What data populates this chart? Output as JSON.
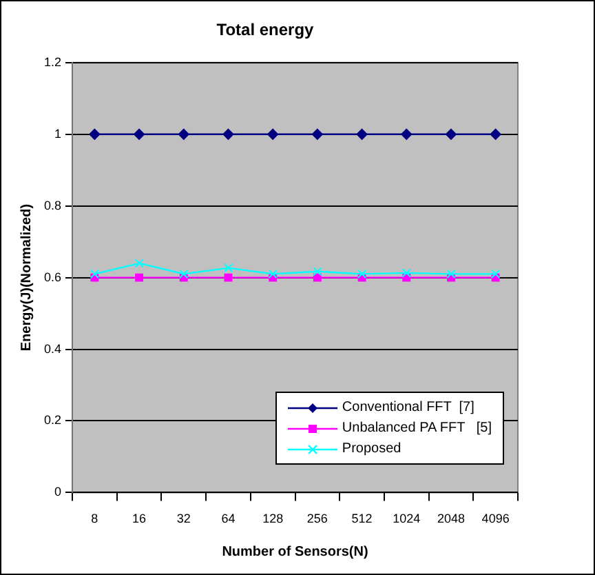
{
  "chart_data": {
    "type": "line",
    "title": "Total energy",
    "xlabel": "Number of Sensors(N)",
    "ylabel": "Energy(J)(Normalized)",
    "categories": [
      "8",
      "16",
      "32",
      "64",
      "128",
      "256",
      "512",
      "1024",
      "2048",
      "4096"
    ],
    "series": [
      {
        "name": "Conventional FFT  [7]",
        "color": "#000080",
        "marker": "diamond",
        "values": [
          1,
          1,
          1,
          1,
          1,
          1,
          1,
          1,
          1,
          1
        ]
      },
      {
        "name": "Unbalanced PA FFT   [5]",
        "color": "#ff00ff",
        "marker": "square",
        "values": [
          0.6,
          0.6,
          0.6,
          0.6,
          0.6,
          0.6,
          0.6,
          0.6,
          0.6,
          0.6
        ]
      },
      {
        "name": "Proposed",
        "color": "#00ffff",
        "marker": "cross",
        "values": [
          0.61,
          0.64,
          0.61,
          0.627,
          0.61,
          0.617,
          0.61,
          0.613,
          0.61,
          0.61
        ]
      }
    ],
    "ylim": [
      0,
      1.2
    ],
    "yticks": [
      0,
      0.2,
      0.4,
      0.6,
      0.8,
      1,
      1.2
    ],
    "grid": "y",
    "legend": "bottom right",
    "line_style": "solid"
  }
}
